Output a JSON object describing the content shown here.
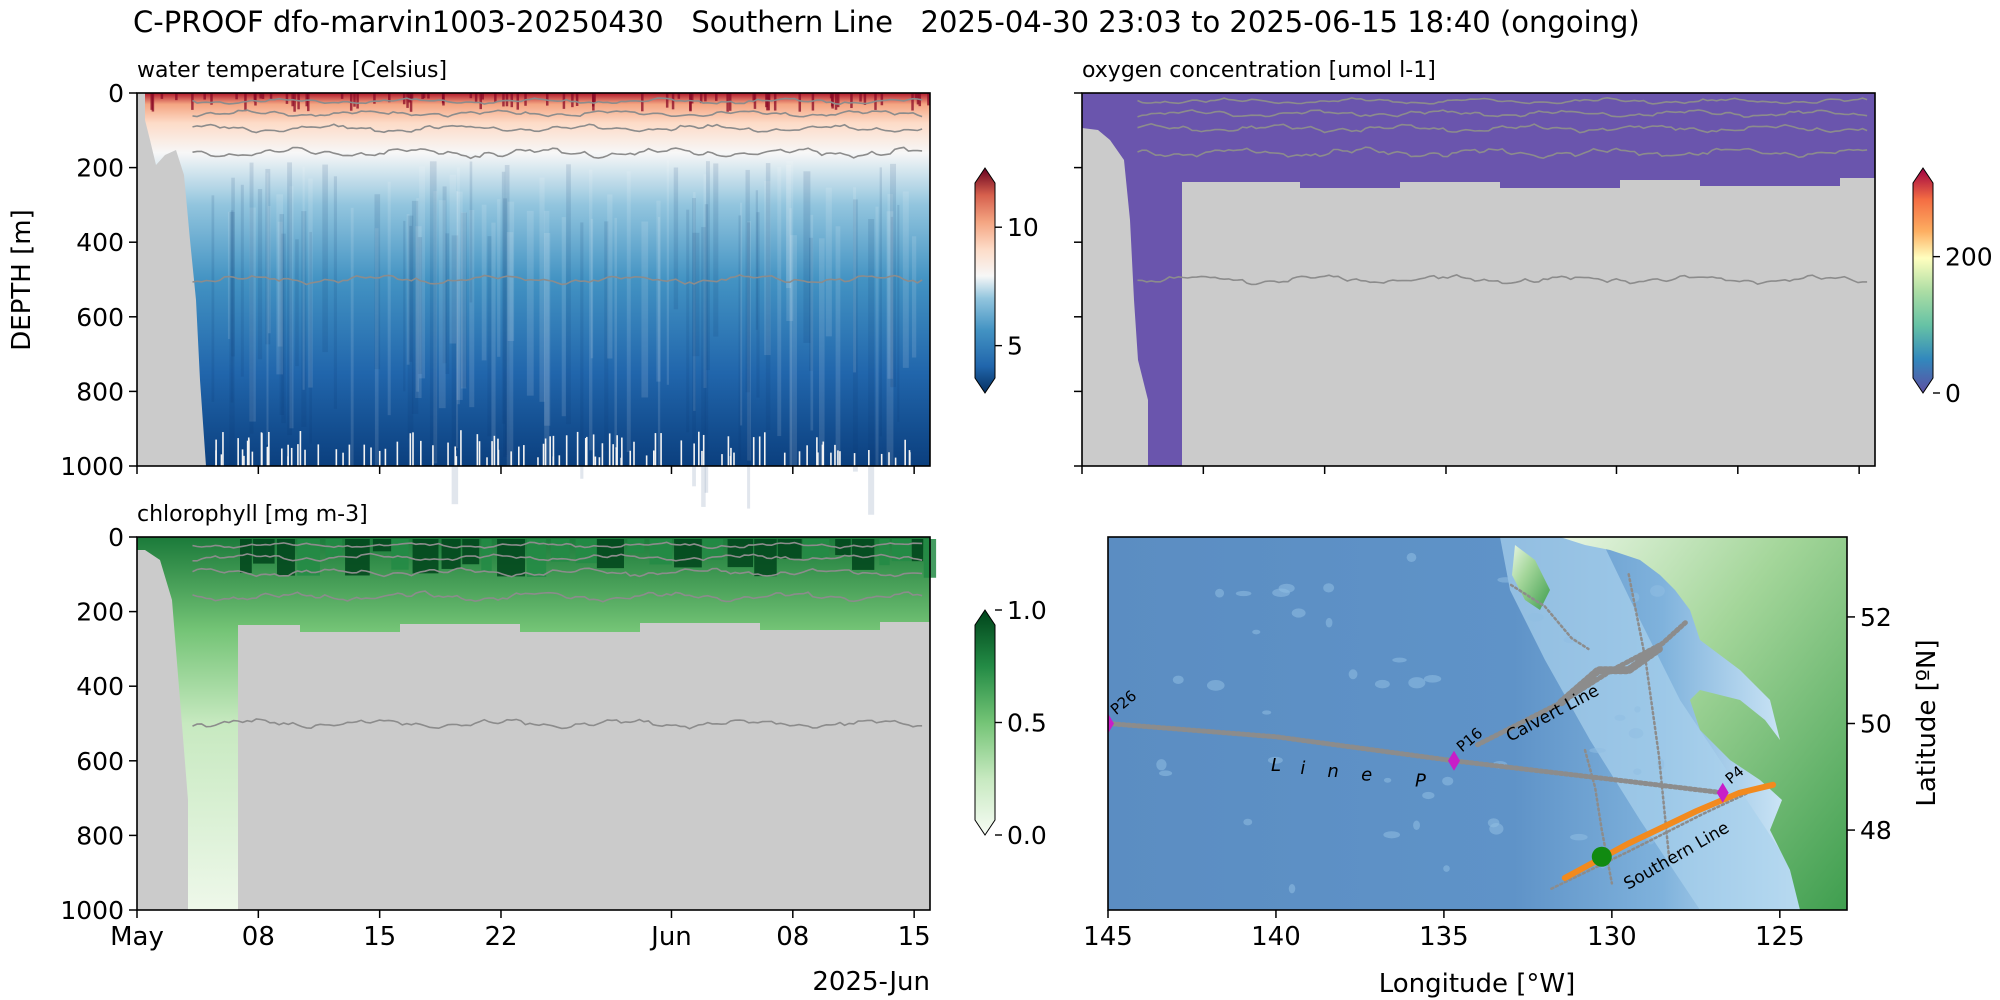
{
  "figure_title": "C-PROOF dfo-marvin1003-20250430   Southern Line   2025-04-30 23:03 to 2025-06-15 18:40 (ongoing)",
  "colors": {
    "land_gray": "#cbcbcb",
    "contour": "#8c8c8c",
    "track": "#8c8c8c",
    "southern_track": "#f28a1e",
    "station": "#c81ec8",
    "current_position": "#118a11",
    "ocean_deep": "#5b8dc2",
    "ocean_shelf": "#a9d2ec",
    "coast_land": "#6cbf6c"
  },
  "time_axis": {
    "ticks": [
      "May",
      "08",
      "15",
      "22",
      "Jun",
      "08",
      "15"
    ],
    "offset_label": "2025-Jun"
  },
  "chart_data": [
    {
      "id": "temperature",
      "type": "heatmap",
      "title": "water temperature [Celsius]",
      "ylabel": "DEPTH [m]",
      "ylim": [
        1000,
        0
      ],
      "yticks": [
        "0",
        "200",
        "400",
        "600",
        "800",
        "1000"
      ],
      "colormap": "RdBu_r",
      "colorbar": {
        "ticks": [
          {
            "value": 5,
            "label": "5"
          },
          {
            "value": 10,
            "label": "10"
          }
        ],
        "range": [
          3,
          12.5
        ]
      },
      "x_range": [
        "2025-05-01",
        "2025-06-15"
      ],
      "isopycnal_depths": [
        22,
        55,
        95,
        160,
        500
      ],
      "surface_temp_c": 11.5,
      "deep_temp_c": 3.5
    },
    {
      "id": "oxygen",
      "type": "heatmap",
      "title": "oxygen concentration [umol l-1]",
      "ylim": [
        1000,
        0
      ],
      "colormap": "Spectral_r",
      "colorbar": {
        "ticks": [
          {
            "value": 0,
            "label": "0"
          },
          {
            "value": 200,
            "label": "200"
          }
        ],
        "range": [
          0,
          330
        ]
      },
      "x_range": [
        "2025-05-01",
        "2025-06-15"
      ],
      "sampled_depth_max": 230,
      "value_shown_umol_l": 5,
      "isopycnal_depths": [
        22,
        55,
        95,
        160,
        500
      ]
    },
    {
      "id": "chlorophyll",
      "type": "heatmap",
      "title": "chlorophyll [mg m-3]",
      "ylim": [
        1000,
        0
      ],
      "yticks": [
        "0",
        "200",
        "400",
        "600",
        "800",
        "1000"
      ],
      "colormap": "Greens",
      "colorbar": {
        "ticks": [
          {
            "value": 0,
            "label": "0.0"
          },
          {
            "value": 0.5,
            "label": "0.5"
          },
          {
            "value": 1.0,
            "label": "1.0"
          }
        ],
        "range": [
          0,
          1.0
        ]
      },
      "x_range": [
        "2025-05-01",
        "2025-06-15"
      ],
      "sampled_depth_max": 230,
      "isopycnal_depths": [
        22,
        55,
        95,
        160,
        500
      ]
    },
    {
      "id": "map",
      "type": "scatter",
      "xlabel": "Longitude [°W]",
      "ylabel": "Latitude [ºN]",
      "xlim": [
        145,
        123
      ],
      "ylim": [
        46.5,
        53.5
      ],
      "xticks": [
        "145",
        "140",
        "135",
        "130",
        "125"
      ],
      "yticks": [
        "48",
        "50",
        "52"
      ],
      "stations": [
        {
          "label": "P26",
          "lon": 145.0,
          "lat": 50.0
        },
        {
          "label": "P16",
          "lon": 134.7,
          "lat": 49.3
        },
        {
          "label": "P4",
          "lon": 126.7,
          "lat": 48.7
        }
      ],
      "line_labels": [
        "Calvert Line",
        "Southern Line"
      ],
      "line_p_letters": [
        "L",
        "i",
        "n",
        "e",
        "P"
      ],
      "current_position": {
        "lon": 130.3,
        "lat": 47.5
      }
    }
  ]
}
